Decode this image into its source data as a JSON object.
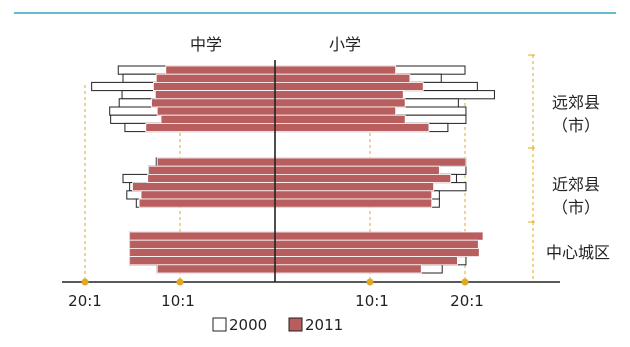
{
  "chart_data": {
    "type": "bar",
    "subtype": "back-to-back horizontal bar (student-teacher ratio)",
    "left_panel_label": "中学",
    "right_panel_label": "小学",
    "x_ticks": {
      "left": [
        "20:1",
        "10:1"
      ],
      "right": [
        "10:1",
        "20:1"
      ]
    },
    "tick_values": [
      20,
      10
    ],
    "groups": [
      {
        "name": "远郊县（市）",
        "label_line1": "远郊县",
        "label_line2": "（市）",
        "rows": 8
      },
      {
        "name": "近郊县（市）",
        "label_line1": "近郊县",
        "label_line2": "（市）",
        "rows": 6
      },
      {
        "name": "中心城区",
        "label_line1": "中心城区",
        "label_line2": "",
        "rows": 5
      }
    ],
    "series": [
      {
        "name": "2000",
        "color": "#ffffff",
        "middle_school": [
          16.5,
          16.0,
          19.3,
          16.1,
          16.4,
          17.4,
          17.3,
          15.8,
          12.5,
          13.3,
          16.0,
          15.3,
          15.6,
          14.6,
          15.3,
          15.3,
          15.3,
          15.3,
          12.4
        ],
        "primary_school": [
          20.0,
          17.5,
          21.3,
          23.1,
          19.3,
          20.1,
          20.1,
          18.2,
          20.1,
          20.1,
          19.1,
          20.1,
          17.3,
          17.3,
          19.6,
          20.1,
          20.1,
          20.1,
          17.6
        ]
      },
      {
        "name": "2011",
        "color": "#b85e5e",
        "middle_school": [
          11.5,
          12.5,
          12.8,
          12.6,
          13.0,
          12.4,
          12.0,
          13.6,
          12.4,
          13.3,
          13.4,
          15.0,
          14.1,
          14.3,
          15.3,
          15.3,
          15.3,
          15.3,
          12.4
        ],
        "primary_school": [
          12.7,
          14.2,
          15.6,
          13.5,
          13.7,
          12.7,
          13.7,
          16.2,
          20.1,
          17.3,
          18.5,
          16.7,
          16.5,
          16.5,
          21.9,
          21.4,
          21.5,
          19.2,
          15.4
        ]
      }
    ],
    "legend": [
      {
        "label": "2000",
        "color": "#ffffff"
      },
      {
        "label": "2011",
        "color": "#b85e5e"
      }
    ],
    "legend_position": "bottom",
    "grid": false
  },
  "colors": {
    "top_rule": "#2aa9c4",
    "bar_2011": "#b85e5e",
    "bar_2000": "#ffffff",
    "bar_outline": "#222222",
    "guide": "#e3a81f",
    "axis": "#222222"
  }
}
